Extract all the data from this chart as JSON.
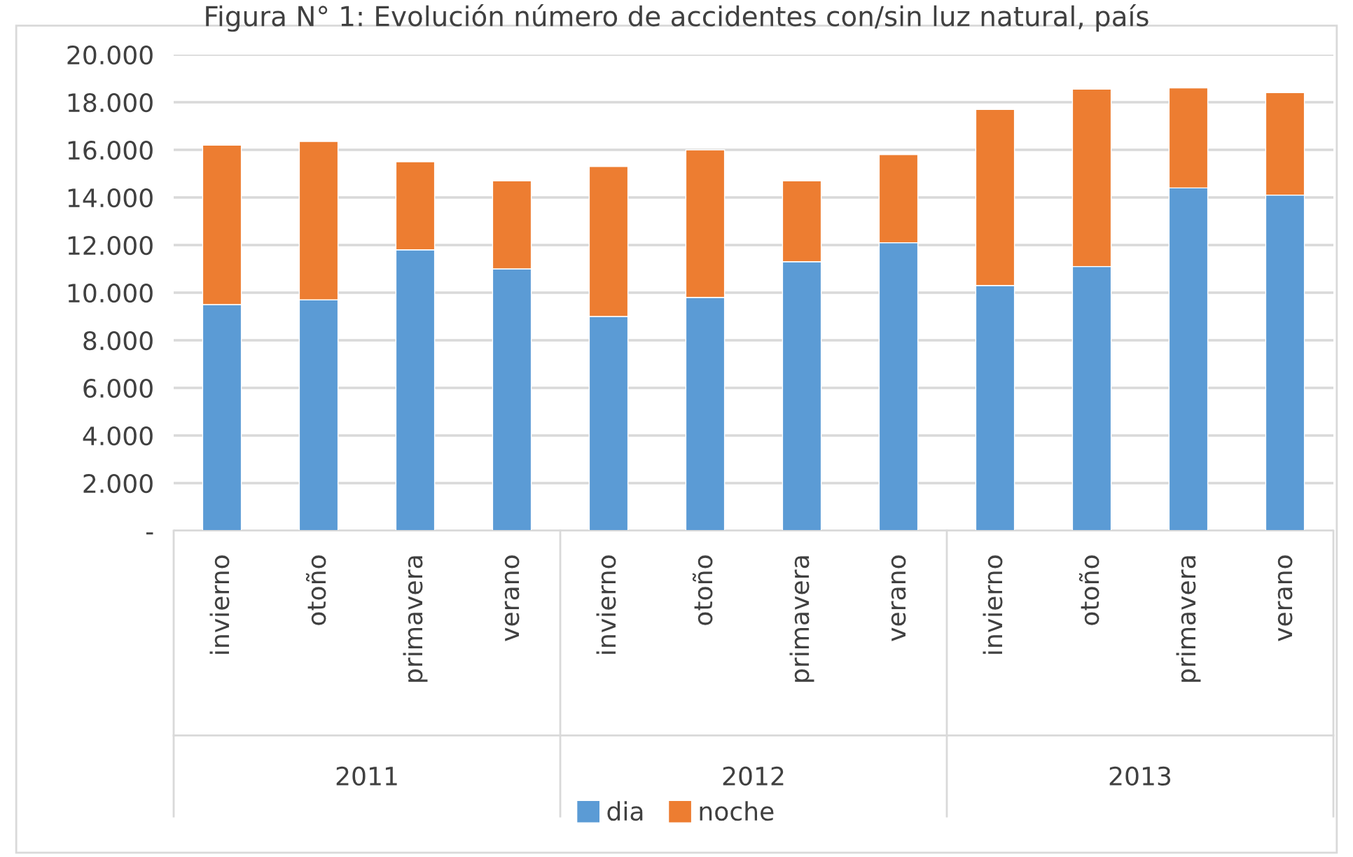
{
  "chart_data": {
    "type": "bar",
    "stacked": true,
    "title": "Figura N° 1: Evolución número de accidentes con/sin luz natural, país",
    "categories": [
      "invierno",
      "otoño",
      "primavera",
      "verano",
      "invierno",
      "otoño",
      "primavera",
      "verano",
      "invierno",
      "otoño",
      "primavera",
      "verano"
    ],
    "annotations": [
      "2011",
      "2012",
      "2013"
    ],
    "series": [
      {
        "name": "dia",
        "color": "#5b9bd5",
        "values": [
          9500,
          9700,
          11800,
          11000,
          9000,
          9800,
          11300,
          12100,
          10300,
          11100,
          14400,
          14100
        ]
      },
      {
        "name": "noche",
        "color": "#ed7d31",
        "values": [
          6700,
          6650,
          3700,
          3700,
          6300,
          6200,
          3400,
          3700,
          7400,
          7450,
          4200,
          4300
        ]
      }
    ],
    "ylim": [
      0,
      20000
    ],
    "yticks": [
      {
        "value": 0,
        "label": "-"
      },
      {
        "value": 2000,
        "label": "2.000"
      },
      {
        "value": 4000,
        "label": "4.000"
      },
      {
        "value": 6000,
        "label": "6.000"
      },
      {
        "value": 8000,
        "label": "8.000"
      },
      {
        "value": 10000,
        "label": "10.000"
      },
      {
        "value": 12000,
        "label": "12.000"
      },
      {
        "value": 14000,
        "label": "14.000"
      },
      {
        "value": 16000,
        "label": "16.000"
      },
      {
        "value": 18000,
        "label": "18.000"
      },
      {
        "value": 20000,
        "label": "20.000"
      }
    ],
    "grid": "y",
    "legend": "bottom"
  }
}
